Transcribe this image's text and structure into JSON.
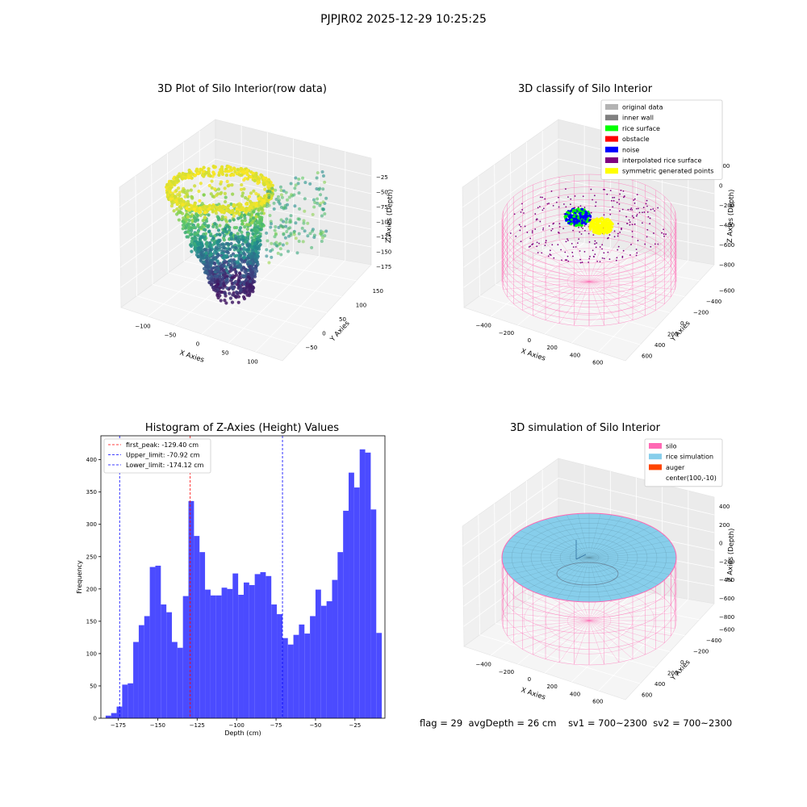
{
  "suptitle": "PJPJR02 2025-12-29 10:25:25",
  "status": {
    "flag": "flag = 29",
    "avg_depth": "avgDepth = 26 cm",
    "sv1": "sv1 = 700~2300",
    "sv2": "sv2 = 700~2300"
  },
  "chart_data": [
    {
      "type": "scatter",
      "title": "3D Plot of Silo Interior(row data)",
      "xlabel": "X Axies",
      "ylabel": "Y Axies",
      "zlabel": "Z Axies (Depth)",
      "x_ticks": [
        "−100",
        "−50",
        "0",
        "50",
        "100"
      ],
      "y_ticks": [
        "−50",
        "0",
        "50",
        "100",
        "150"
      ],
      "z_ticks": [
        "−25",
        "−50",
        "−75",
        "−100",
        "−125",
        "−150",
        "−175"
      ],
      "xlim": [
        -120,
        120
      ],
      "ylim": [
        -60,
        160
      ],
      "zlim": [
        -185,
        -10
      ],
      "colormap": "viridis",
      "grid": true
    },
    {
      "type": "scatter",
      "title": "3D classify of Silo Interior",
      "xlabel": "X Axies",
      "ylabel": "Y Axies",
      "zlabel": "Z Axies (Depth)",
      "x_ticks": [
        "−400",
        "−200",
        "0",
        "200",
        "400",
        "600"
      ],
      "y_ticks": [
        "600",
        "400",
        "200",
        "0",
        "−200",
        "−400",
        "−600"
      ],
      "z_ticks": [
        "200",
        "0",
        "−200",
        "−400",
        "−600",
        "−800"
      ],
      "legend_position": "top-right",
      "legend": [
        {
          "label": "original data",
          "color": "#b3b3b3"
        },
        {
          "label": "inner wall",
          "color": "#808080"
        },
        {
          "label": "rice surface",
          "color": "#00ff00"
        },
        {
          "label": "obstacle",
          "color": "#ff0000"
        },
        {
          "label": "noise",
          "color": "#0000ff"
        },
        {
          "label": "interpolated rice surface",
          "color": "#800080"
        },
        {
          "label": "symmetric generated points",
          "color": "#ffff00"
        }
      ],
      "grid": true
    },
    {
      "type": "bar",
      "title": "Histogram of Z-Axies (Height) Values",
      "xlabel": "Depth (cm)",
      "ylabel": "Frequency",
      "bar_color": "#4b4bff",
      "bins_start": -183,
      "bin_width": 3.5,
      "values": [
        4,
        8,
        18,
        52,
        54,
        118,
        144,
        158,
        234,
        236,
        176,
        164,
        118,
        109,
        189,
        336,
        282,
        257,
        199,
        190,
        190,
        202,
        200,
        224,
        191,
        210,
        206,
        223,
        226,
        220,
        176,
        161,
        124,
        114,
        129,
        145,
        131,
        158,
        199,
        174,
        181,
        214,
        257,
        321,
        380,
        357,
        416,
        411,
        323,
        132
      ],
      "xlim": [
        -186,
        -6
      ],
      "ylim": [
        0,
        437
      ],
      "x_ticks": [
        -175,
        -150,
        -125,
        -100,
        -75,
        -50,
        -25
      ],
      "y_ticks": [
        0,
        50,
        100,
        150,
        200,
        250,
        300,
        350,
        400
      ],
      "lines": [
        {
          "x": -129.4,
          "label": "first_peak: -129.40 cm",
          "color": "#ff0000"
        },
        {
          "x": -70.92,
          "label": "Upper_limit: -70.92 cm",
          "color": "#0000ff"
        },
        {
          "x": -174.12,
          "label": "Lower_limit: -174.12 cm",
          "color": "#0000ff"
        }
      ],
      "legend_position": "top-left",
      "grid": false
    },
    {
      "type": "area",
      "title": "3D simulation of Silo Interior",
      "xlabel": "X Axies",
      "ylabel": "Y Axies",
      "zlabel": "Z Axies (Depth)",
      "x_ticks": [
        "−400",
        "−200",
        "0",
        "200",
        "400",
        "600"
      ],
      "y_ticks": [
        "600",
        "400",
        "200",
        "0",
        "−200",
        "−400",
        "−600"
      ],
      "z_ticks": [
        "400",
        "200",
        "0",
        "−200",
        "−400",
        "−600",
        "−800"
      ],
      "legend_position": "top-right",
      "legend": [
        {
          "label": "silo",
          "color": "#ff69b4"
        },
        {
          "label": "rice simulation",
          "color": "#87ceeb"
        },
        {
          "label": "auger",
          "color": "#ff4500"
        },
        {
          "label": "center(100,-10)",
          "color": "#ffffff"
        }
      ],
      "grid": true
    }
  ]
}
